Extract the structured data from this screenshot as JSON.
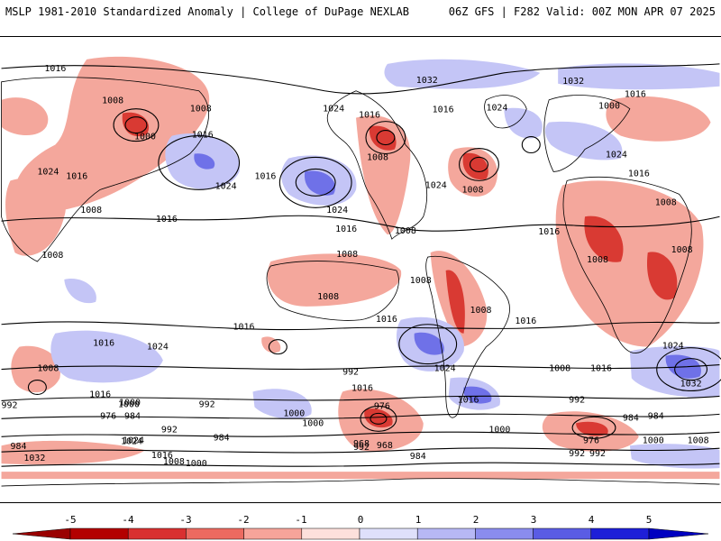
{
  "header": {
    "left": "MSLP 1981-2010 Standardized Anomaly | College of DuPage NEXLAB",
    "right": "06Z GFS | F282 Valid: 00Z MON APR 07 2025"
  },
  "colorbar": {
    "ticks": [
      "-5",
      "-4",
      "-3",
      "-2",
      "-1",
      "0",
      "1",
      "2",
      "3",
      "4",
      "5"
    ],
    "colors": [
      "#b30000",
      "#d93030",
      "#ec6a60",
      "#f7a49a",
      "#fde0dc",
      "#ffffff",
      "#dfe0fb",
      "#b7b8f5",
      "#8a8cee",
      "#5a5ce4",
      "#1e1fd8"
    ]
  },
  "isobar_labels": [
    {
      "id": "l1",
      "text": "1016"
    },
    {
      "id": "l2",
      "text": "1008"
    },
    {
      "id": "l3",
      "text": "1008"
    },
    {
      "id": "l4",
      "text": "1000"
    },
    {
      "id": "l5",
      "text": "1016"
    },
    {
      "id": "l6",
      "text": "1024"
    },
    {
      "id": "l7",
      "text": "1016"
    },
    {
      "id": "l8",
      "text": "1008"
    },
    {
      "id": "l9",
      "text": "1008"
    },
    {
      "id": "l10",
      "text": "1016"
    },
    {
      "id": "l11",
      "text": "1024"
    },
    {
      "id": "l12",
      "text": "1016"
    },
    {
      "id": "l13",
      "text": "1024"
    },
    {
      "id": "l14",
      "text": "1016"
    },
    {
      "id": "l15",
      "text": "1024"
    },
    {
      "id": "l16",
      "text": "1016"
    },
    {
      "id": "l17",
      "text": "1008"
    },
    {
      "id": "l18",
      "text": "1032"
    },
    {
      "id": "l19",
      "text": "1016"
    },
    {
      "id": "l20",
      "text": "1024"
    },
    {
      "id": "l21",
      "text": "1024"
    },
    {
      "id": "l22",
      "text": "1008"
    },
    {
      "id": "l23",
      "text": "1008"
    },
    {
      "id": "l24",
      "text": "1016"
    },
    {
      "id": "l25",
      "text": "1032"
    },
    {
      "id": "l26",
      "text": "1016"
    },
    {
      "id": "l27",
      "text": "1000"
    },
    {
      "id": "l28",
      "text": "1024"
    },
    {
      "id": "l29",
      "text": "1016"
    },
    {
      "id": "l30",
      "text": "1008"
    },
    {
      "id": "l31",
      "text": "1008"
    },
    {
      "id": "l32",
      "text": "1008"
    },
    {
      "id": "l33",
      "text": "1008"
    },
    {
      "id": "l34",
      "text": "1008"
    },
    {
      "id": "l35",
      "text": "1016"
    },
    {
      "id": "l36",
      "text": "1016"
    },
    {
      "id": "l37",
      "text": "1008"
    },
    {
      "id": "l38",
      "text": "1016"
    },
    {
      "id": "l39",
      "text": "1024"
    },
    {
      "id": "l40",
      "text": "1016"
    },
    {
      "id": "l41",
      "text": "1008"
    },
    {
      "id": "l42",
      "text": "1016"
    },
    {
      "id": "l43",
      "text": "1024"
    },
    {
      "id": "l44",
      "text": "1008"
    },
    {
      "id": "l45",
      "text": "1016"
    },
    {
      "id": "l46",
      "text": "1024"
    },
    {
      "id": "l47",
      "text": "1032"
    },
    {
      "id": "l48",
      "text": "1016"
    },
    {
      "id": "l49",
      "text": "1008"
    },
    {
      "id": "l50",
      "text": "992"
    },
    {
      "id": "l51",
      "text": "1000"
    },
    {
      "id": "l52",
      "text": "984"
    },
    {
      "id": "l53",
      "text": "976"
    },
    {
      "id": "l54",
      "text": "992"
    },
    {
      "id": "l55",
      "text": "1024"
    },
    {
      "id": "l56",
      "text": "1032"
    },
    {
      "id": "l57",
      "text": "984"
    },
    {
      "id": "l58",
      "text": "992"
    },
    {
      "id": "l59",
      "text": "1016"
    },
    {
      "id": "l60",
      "text": "1000"
    },
    {
      "id": "l61",
      "text": "1000"
    },
    {
      "id": "l62",
      "text": "1008"
    },
    {
      "id": "l63",
      "text": "1000"
    },
    {
      "id": "l64",
      "text": "984"
    },
    {
      "id": "l65",
      "text": "992"
    },
    {
      "id": "l66",
      "text": "1016"
    },
    {
      "id": "l67",
      "text": "1000"
    },
    {
      "id": "l68",
      "text": "992"
    },
    {
      "id": "l69",
      "text": "976"
    },
    {
      "id": "l70",
      "text": "992"
    },
    {
      "id": "l71",
      "text": "968"
    },
    {
      "id": "l72",
      "text": "984"
    },
    {
      "id": "l73",
      "text": "1000"
    },
    {
      "id": "l74",
      "text": "992"
    },
    {
      "id": "l75",
      "text": "984"
    },
    {
      "id": "l76",
      "text": "976"
    },
    {
      "id": "l77",
      "text": "984"
    },
    {
      "id": "l78",
      "text": "1000"
    },
    {
      "id": "l79",
      "text": "1008"
    },
    {
      "id": "l80",
      "text": "992"
    },
    {
      "id": "l81",
      "text": "968"
    },
    {
      "id": "l82",
      "text": "1024"
    }
  ]
}
